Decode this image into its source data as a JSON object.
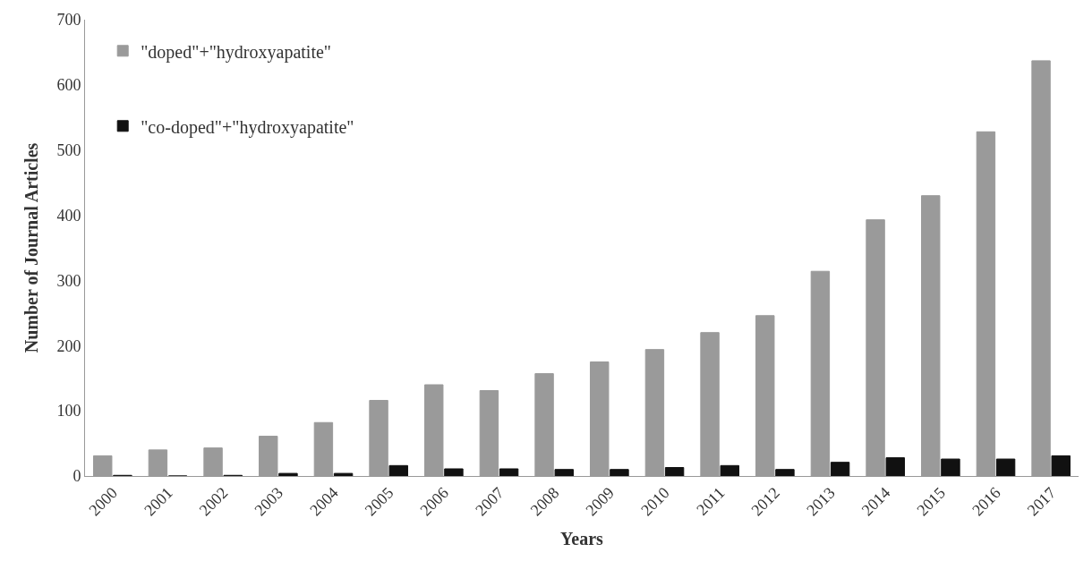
{
  "chart_data": {
    "type": "bar",
    "xlabel": "Years",
    "ylabel": "Number of Journal Articles",
    "categories": [
      "2000",
      "2001",
      "2002",
      "2003",
      "2004",
      "2005",
      "2006",
      "2007",
      "2008",
      "2009",
      "2010",
      "2011",
      "2012",
      "2013",
      "2014",
      "2015",
      "2016",
      "2017"
    ],
    "series": [
      {
        "name": "\"doped\"+\"hydroxyapatite\"",
        "color": "#9a9a9a",
        "values": [
          31,
          40,
          43,
          61,
          82,
          116,
          140,
          131,
          157,
          175,
          194,
          220,
          246,
          314,
          393,
          430,
          528,
          637
        ]
      },
      {
        "name": "\"co-doped\"+\"hydroxyapatite\"",
        "color": "#111111",
        "values": [
          1,
          0,
          1,
          4,
          4,
          16,
          11,
          11,
          10,
          10,
          13,
          16,
          10,
          21,
          28,
          26,
          26,
          31
        ]
      }
    ],
    "ylim": [
      0,
      700
    ],
    "yticks": [
      0,
      100,
      200,
      300,
      400,
      500,
      600,
      700
    ],
    "legend": "top left"
  }
}
